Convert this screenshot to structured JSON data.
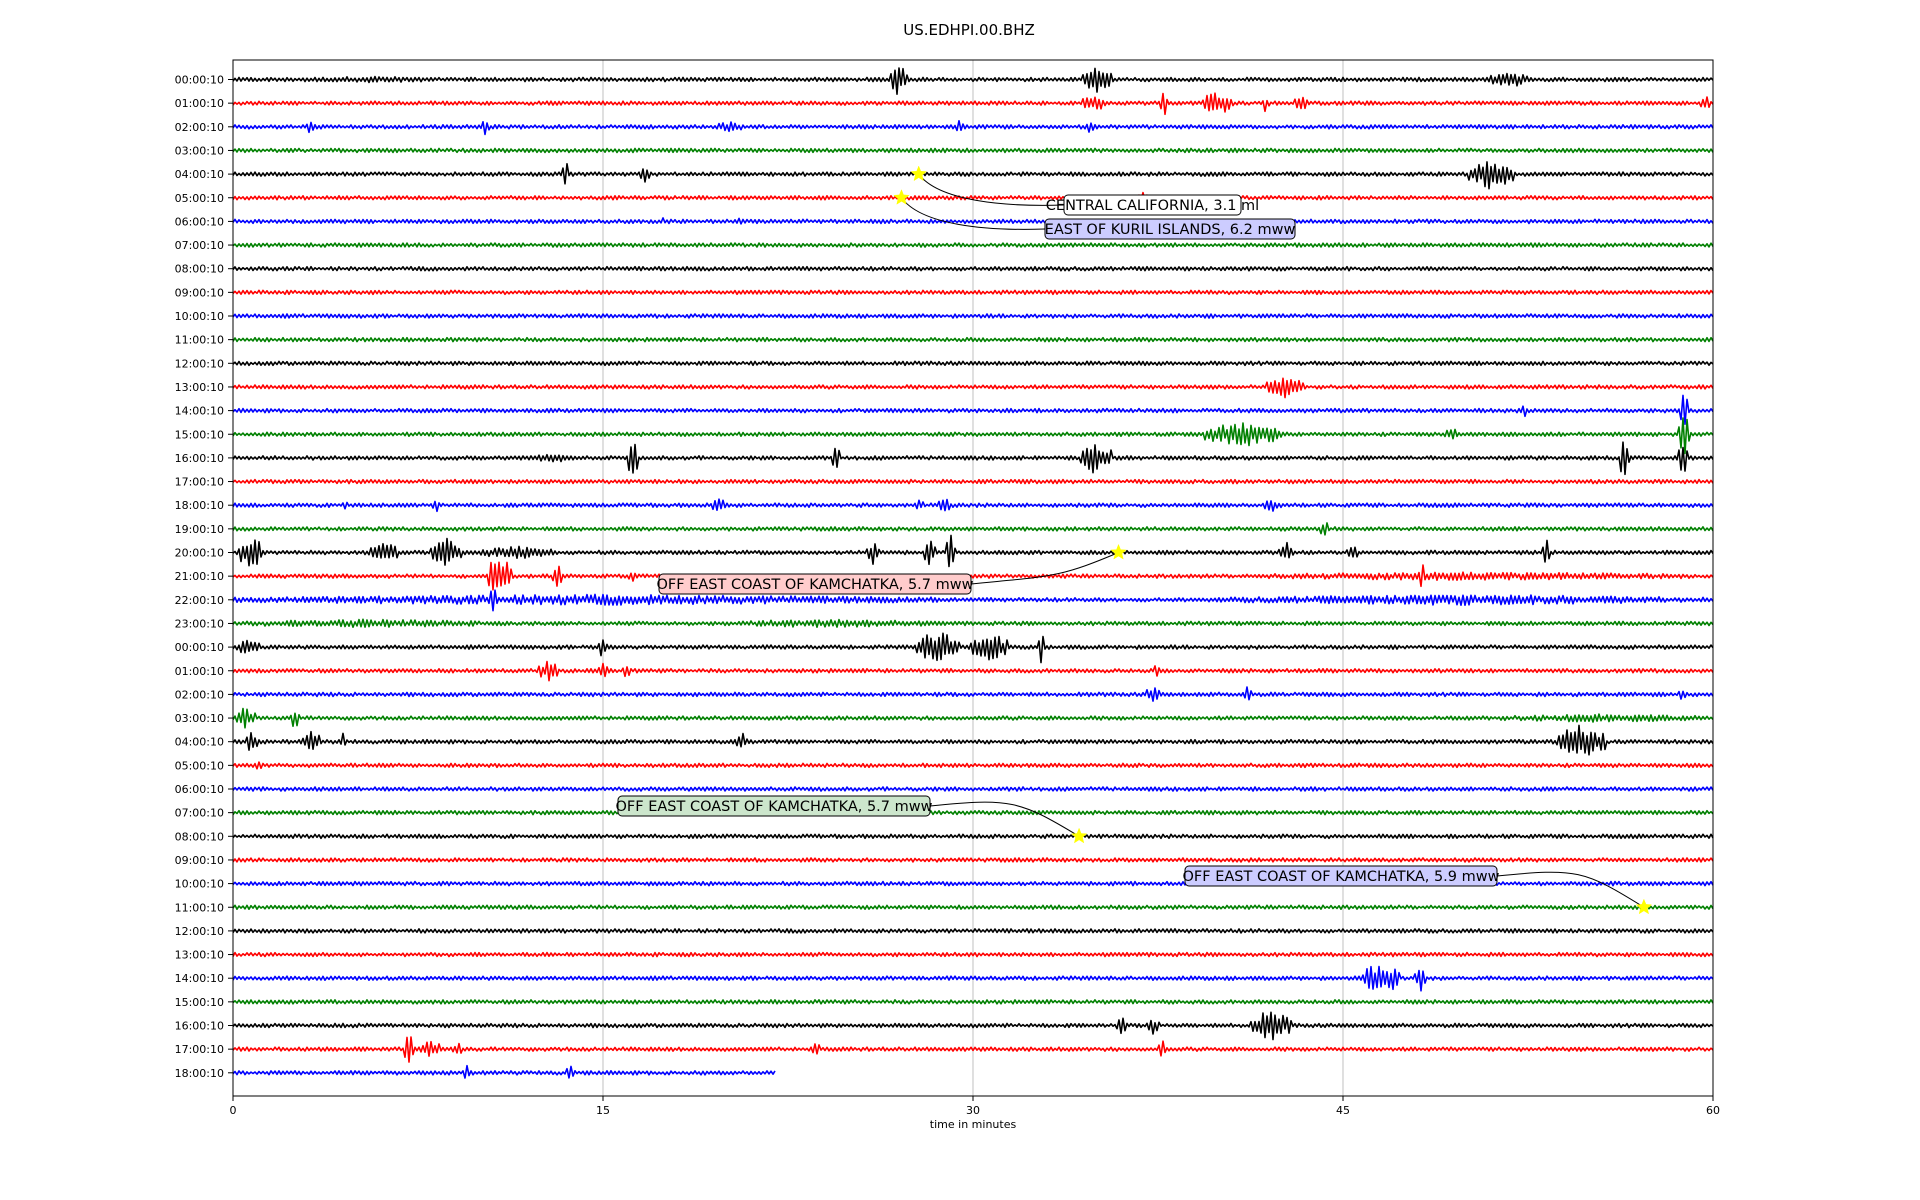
{
  "chart_data": {
    "type": "line",
    "title": "US.EDHPI.00.BHZ",
    "xlabel": "time in minutes",
    "ylabel": "",
    "xlim": [
      0,
      60
    ],
    "x_ticks": [
      "0",
      "15",
      "30",
      "45",
      "60"
    ],
    "x_tick_values": [
      0,
      15,
      30,
      45,
      60
    ],
    "grid": "vertical lines at x ticks",
    "trace_colors": [
      "#000000",
      "#ff0000",
      "#0000ff",
      "#008000"
    ],
    "row_labels": [
      "00:00:10",
      "01:00:10",
      "02:00:10",
      "03:00:10",
      "04:00:10",
      "05:00:10",
      "06:00:10",
      "07:00:10",
      "08:00:10",
      "09:00:10",
      "10:00:10",
      "11:00:10",
      "12:00:10",
      "13:00:10",
      "14:00:10",
      "15:00:10",
      "16:00:10",
      "17:00:10",
      "18:00:10",
      "19:00:10",
      "20:00:10",
      "21:00:10",
      "22:00:10",
      "23:00:10",
      "00:00:10",
      "01:00:10",
      "02:00:10",
      "03:00:10",
      "04:00:10",
      "05:00:10",
      "06:00:10",
      "07:00:10",
      "08:00:10",
      "09:00:10",
      "10:00:10",
      "11:00:10",
      "12:00:10",
      "13:00:10",
      "14:00:10",
      "15:00:10",
      "16:00:10",
      "17:00:10",
      "18:00:10"
    ],
    "last_row_end_minute": 22,
    "noise_amplitude": 1,
    "bursts": [
      {
        "row": 0,
        "start": 2,
        "end": 9,
        "amp": 1.5
      },
      {
        "row": 0,
        "start": 26.6,
        "end": 27.4,
        "amp": 8
      },
      {
        "row": 0,
        "start": 34.4,
        "end": 35.6,
        "amp": 6
      },
      {
        "row": 0,
        "start": 50.9,
        "end": 52.5,
        "amp": 4
      },
      {
        "row": 1,
        "start": 34.4,
        "end": 35.4,
        "amp": 4
      },
      {
        "row": 1,
        "start": 37.6,
        "end": 37.9,
        "amp": 6
      },
      {
        "row": 1,
        "start": 39.3,
        "end": 40.6,
        "amp": 6
      },
      {
        "row": 1,
        "start": 41.7,
        "end": 42,
        "amp": 4
      },
      {
        "row": 1,
        "start": 43,
        "end": 43.6,
        "amp": 5
      },
      {
        "row": 1,
        "start": 59.5,
        "end": 59.9,
        "amp": 4
      },
      {
        "row": 2,
        "start": 3,
        "end": 3.4,
        "amp": 4
      },
      {
        "row": 2,
        "start": 10.1,
        "end": 10.4,
        "amp": 5
      },
      {
        "row": 2,
        "start": 19.5,
        "end": 20.7,
        "amp": 2.5
      },
      {
        "row": 2,
        "start": 29.3,
        "end": 29.6,
        "amp": 4
      },
      {
        "row": 2,
        "start": 34.6,
        "end": 34.9,
        "amp": 4
      },
      {
        "row": 4,
        "start": 13.3,
        "end": 13.6,
        "amp": 10
      },
      {
        "row": 4,
        "start": 16.5,
        "end": 16.9,
        "amp": 5
      },
      {
        "row": 4,
        "start": 50.1,
        "end": 51.9,
        "amp": 7
      },
      {
        "row": 5,
        "start": 36.7,
        "end": 37.1,
        "amp": 2.5
      },
      {
        "row": 6,
        "start": 17.3,
        "end": 17.6,
        "amp": 2
      },
      {
        "row": 6,
        "start": 20.4,
        "end": 20.7,
        "amp": 2
      },
      {
        "row": 13,
        "start": 41.9,
        "end": 43.4,
        "amp": 5
      },
      {
        "row": 14,
        "start": 52.2,
        "end": 52.5,
        "amp": 3
      },
      {
        "row": 14,
        "start": 58.7,
        "end": 59,
        "amp": 10
      },
      {
        "row": 15,
        "start": 39.4,
        "end": 42.5,
        "amp": 6
      },
      {
        "row": 15,
        "start": 49.1,
        "end": 49.8,
        "amp": 3
      },
      {
        "row": 15,
        "start": 58.6,
        "end": 59.1,
        "amp": 10
      },
      {
        "row": 16,
        "start": 12,
        "end": 14,
        "amp": 2
      },
      {
        "row": 16,
        "start": 16,
        "end": 16.4,
        "amp": 10
      },
      {
        "row": 16,
        "start": 24.3,
        "end": 24.6,
        "amp": 6
      },
      {
        "row": 16,
        "start": 34.3,
        "end": 35.6,
        "amp": 8
      },
      {
        "row": 16,
        "start": 56.2,
        "end": 56.6,
        "amp": 10
      },
      {
        "row": 16,
        "start": 58.6,
        "end": 59,
        "amp": 8
      },
      {
        "row": 18,
        "start": 4.4,
        "end": 4.7,
        "amp": 3
      },
      {
        "row": 18,
        "start": 8.1,
        "end": 8.4,
        "amp": 3
      },
      {
        "row": 18,
        "start": 19.4,
        "end": 20,
        "amp": 4
      },
      {
        "row": 18,
        "start": 27.7,
        "end": 28,
        "amp": 3
      },
      {
        "row": 18,
        "start": 28.6,
        "end": 29.1,
        "amp": 4
      },
      {
        "row": 18,
        "start": 41.8,
        "end": 42.5,
        "amp": 3
      },
      {
        "row": 19,
        "start": 44.1,
        "end": 44.4,
        "amp": 5
      },
      {
        "row": 20,
        "start": 0.2,
        "end": 1.2,
        "amp": 8
      },
      {
        "row": 20,
        "start": 5.5,
        "end": 6.7,
        "amp": 5
      },
      {
        "row": 20,
        "start": 8,
        "end": 9.3,
        "amp": 7
      },
      {
        "row": 20,
        "start": 10,
        "end": 13,
        "amp": 3
      },
      {
        "row": 20,
        "start": 25.7,
        "end": 26.2,
        "amp": 6
      },
      {
        "row": 20,
        "start": 28,
        "end": 28.5,
        "amp": 6
      },
      {
        "row": 20,
        "start": 28.9,
        "end": 29.3,
        "amp": 8
      },
      {
        "row": 20,
        "start": 42.4,
        "end": 43,
        "amp": 5
      },
      {
        "row": 20,
        "start": 45.1,
        "end": 45.6,
        "amp": 4
      },
      {
        "row": 20,
        "start": 53.1,
        "end": 53.4,
        "amp": 6
      },
      {
        "row": 21,
        "start": 10.3,
        "end": 11.3,
        "amp": 10
      },
      {
        "row": 21,
        "start": 12.9,
        "end": 13.3,
        "amp": 7
      },
      {
        "row": 21,
        "start": 16,
        "end": 16.4,
        "amp": 3
      },
      {
        "row": 21,
        "start": 40.5,
        "end": 60,
        "amp": 2
      },
      {
        "row": 21,
        "start": 48,
        "end": 48.4,
        "amp": 6
      },
      {
        "row": 22,
        "start": 0,
        "end": 29,
        "amp": 2.5
      },
      {
        "row": 22,
        "start": 10.4,
        "end": 10.7,
        "amp": 6
      },
      {
        "row": 22,
        "start": 40,
        "end": 60,
        "amp": 2.5
      },
      {
        "row": 23,
        "start": 0,
        "end": 11,
        "amp": 2
      },
      {
        "row": 23,
        "start": 19.6,
        "end": 29,
        "amp": 2
      },
      {
        "row": 24,
        "start": 0.1,
        "end": 1.1,
        "amp": 4
      },
      {
        "row": 24,
        "start": 14.8,
        "end": 15.2,
        "amp": 5
      },
      {
        "row": 24,
        "start": 27.7,
        "end": 29.5,
        "amp": 8
      },
      {
        "row": 24,
        "start": 29.9,
        "end": 31.4,
        "amp": 7
      },
      {
        "row": 24,
        "start": 32.6,
        "end": 32.9,
        "amp": 8
      },
      {
        "row": 25,
        "start": 12.4,
        "end": 13.2,
        "amp": 5
      },
      {
        "row": 25,
        "start": 14.8,
        "end": 15.2,
        "amp": 5
      },
      {
        "row": 25,
        "start": 15.8,
        "end": 16.1,
        "amp": 4
      },
      {
        "row": 25,
        "start": 37.3,
        "end": 37.6,
        "amp": 3
      },
      {
        "row": 26,
        "start": 37,
        "end": 37.6,
        "amp": 4
      },
      {
        "row": 26,
        "start": 41,
        "end": 41.3,
        "amp": 5
      },
      {
        "row": 26,
        "start": 58.6,
        "end": 58.9,
        "amp": 3
      },
      {
        "row": 27,
        "start": 0.1,
        "end": 0.9,
        "amp": 5
      },
      {
        "row": 27,
        "start": 2.3,
        "end": 2.7,
        "amp": 5
      },
      {
        "row": 27,
        "start": 51,
        "end": 60,
        "amp": 2
      },
      {
        "row": 28,
        "start": 0.5,
        "end": 1,
        "amp": 5
      },
      {
        "row": 28,
        "start": 2.8,
        "end": 3.6,
        "amp": 5
      },
      {
        "row": 28,
        "start": 4.3,
        "end": 4.6,
        "amp": 4
      },
      {
        "row": 28,
        "start": 20.4,
        "end": 20.9,
        "amp": 4
      },
      {
        "row": 28,
        "start": 53.6,
        "end": 55.7,
        "amp": 8
      },
      {
        "row": 29,
        "start": 0.9,
        "end": 1.2,
        "amp": 3
      },
      {
        "row": 38,
        "start": 45.8,
        "end": 47.3,
        "amp": 8
      },
      {
        "row": 38,
        "start": 47.9,
        "end": 48.4,
        "amp": 6
      },
      {
        "row": 40,
        "start": 35.8,
        "end": 36.3,
        "amp": 4
      },
      {
        "row": 40,
        "start": 37,
        "end": 37.6,
        "amp": 4
      },
      {
        "row": 40,
        "start": 41.2,
        "end": 42.9,
        "amp": 7
      },
      {
        "row": 41,
        "start": 6.9,
        "end": 7.3,
        "amp": 10
      },
      {
        "row": 41,
        "start": 7.6,
        "end": 8.5,
        "amp": 4
      },
      {
        "row": 41,
        "start": 8.9,
        "end": 9.3,
        "amp": 4
      },
      {
        "row": 41,
        "start": 23.5,
        "end": 23.8,
        "amp": 4
      },
      {
        "row": 41,
        "start": 37.5,
        "end": 37.8,
        "amp": 5
      },
      {
        "row": 42,
        "start": 9.3,
        "end": 9.6,
        "amp": 4
      },
      {
        "row": 42,
        "start": 13.5,
        "end": 13.8,
        "amp": 4
      }
    ],
    "events": [
      {
        "label": "CENTRAL CALIFORNIA, 3.1 ml",
        "row": 4,
        "minute": 27.8,
        "label_color": "#ffffff"
      },
      {
        "label": "EAST OF KURIL ISLANDS, 6.2 mww",
        "row": 5,
        "minute": 27.1,
        "label_color": "#ccccff"
      },
      {
        "label": "OFF EAST COAST OF KAMCHATKA, 5.7 mww",
        "row": 20,
        "minute": 35.9,
        "label_color": "#ffcccc"
      },
      {
        "label": "OFF EAST COAST OF KAMCHATKA, 5.7 mww",
        "row": 32,
        "minute": 34.3,
        "label_color": "#cce6cc"
      },
      {
        "label": "OFF EAST COAST OF KAMCHATKA, 5.9 mww",
        "row": 35,
        "minute": 57.2,
        "label_color": "#ccccff"
      }
    ],
    "marker_color": "#ffff00"
  }
}
